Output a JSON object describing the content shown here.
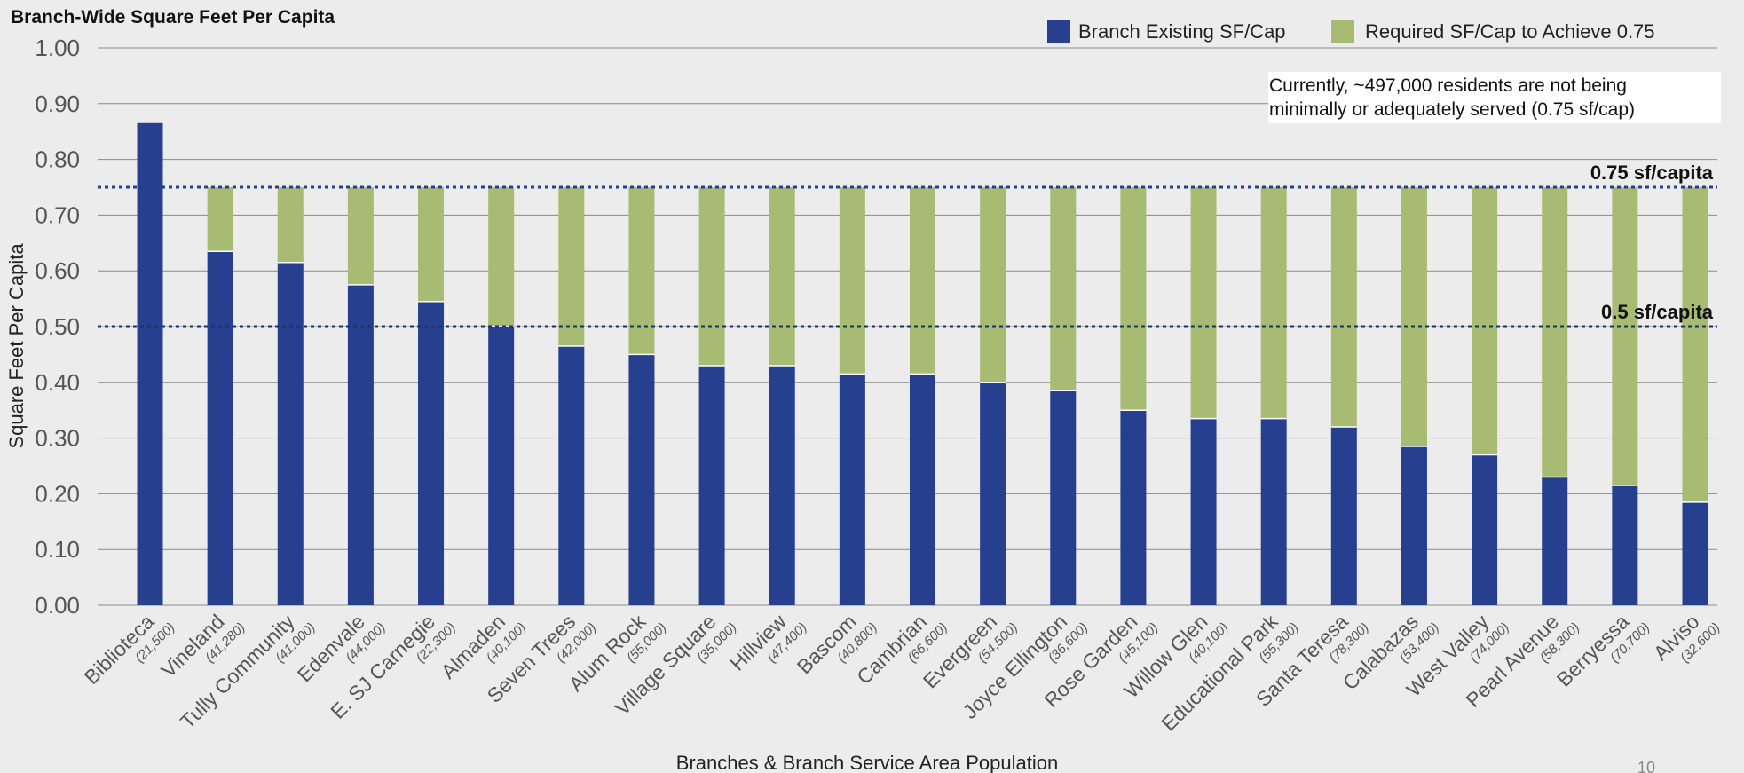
{
  "chart_data": {
    "type": "bar",
    "stacked": true,
    "title": "Branch-Wide Square Feet Per Capita",
    "ylabel": "Square Feet Per Capita",
    "xlabel": "Branches & Branch Service Area Population",
    "ylim": [
      0,
      1.0
    ],
    "yticks": [
      "0.00",
      "0.10",
      "0.20",
      "0.30",
      "0.40",
      "0.50",
      "0.60",
      "0.70",
      "0.80",
      "0.90",
      "1.00"
    ],
    "grid": true,
    "legend_position": "top-right",
    "categories": [
      "Biblioteca",
      "Vineland",
      "Tully Community",
      "Edenvale",
      "E. SJ Carnegie",
      "Almaden",
      "Seven Trees",
      "Alum Rock",
      "Village Square",
      "Hillview",
      "Bascom",
      "Cambrian",
      "Evergreen",
      "Joyce Ellington",
      "Rose Garden",
      "Willow Glen",
      "Educational Park",
      "Santa Teresa",
      "Calabazas",
      "West Valley",
      "Pearl Avenue",
      "Berryessa",
      "Alviso"
    ],
    "populations": [
      "(21,500)",
      "(41,280)",
      "(41,000)",
      "(44,000)",
      "(22,300)",
      "(40,100)",
      "(42,000)",
      "(55,000)",
      "(35,000)",
      "(47,400)",
      "(40,800)",
      "(66,600)",
      "(54,500)",
      "(36,600)",
      "(45,100)",
      "(40,100)",
      "(55,300)",
      "(78,300)",
      "(53,400)",
      "(74,000)",
      "(58,300)",
      "(70,700)",
      "(32,600)"
    ],
    "series": [
      {
        "name": "Branch Existing SF/Cap",
        "color": "#263f8f",
        "values": [
          0.865,
          0.635,
          0.615,
          0.575,
          0.545,
          0.5,
          0.465,
          0.45,
          0.43,
          0.43,
          0.415,
          0.415,
          0.4,
          0.385,
          0.35,
          0.335,
          0.335,
          0.32,
          0.285,
          0.27,
          0.23,
          0.215,
          0.185
        ]
      },
      {
        "name": "Required SF/Cap to Achieve 0.75",
        "color": "#a8bb73",
        "values": [
          0,
          0.115,
          0.135,
          0.175,
          0.205,
          0.25,
          0.285,
          0.3,
          0.32,
          0.32,
          0.335,
          0.335,
          0.35,
          0.365,
          0.4,
          0.415,
          0.415,
          0.43,
          0.465,
          0.48,
          0.52,
          0.535,
          0.565
        ]
      }
    ],
    "reference_lines": [
      {
        "value": 0.75,
        "label": "0.75 sf/capita",
        "color": "#263f8f"
      },
      {
        "value": 0.5,
        "label": "0.5 sf/capita",
        "color": "#1f2f6f"
      }
    ],
    "annotation": {
      "line1": "Currently, ~497,000 residents are not being",
      "line2": "minimally or adequately served (0.75 sf/cap)"
    }
  },
  "page_number": "10"
}
